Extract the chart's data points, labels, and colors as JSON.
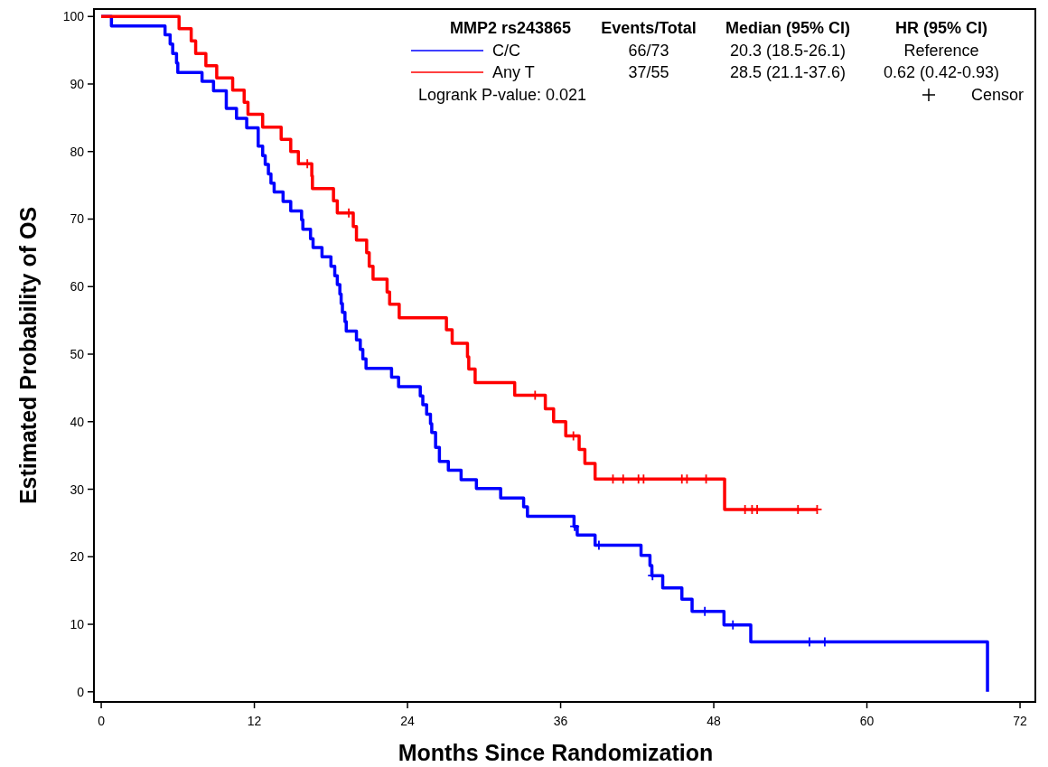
{
  "chart_data": {
    "type": "step",
    "xlabel": "Months Since Randomization",
    "ylabel": "Estimated Probability of OS",
    "legend_title": "MMP2 rs243865",
    "legend": "top",
    "grid": false,
    "xlim": [
      -0.57,
      73.2
    ],
    "ylim": [
      -1.5,
      101.1
    ],
    "xticks": [
      0,
      12,
      24,
      36,
      48,
      60,
      72
    ],
    "yticks": [
      0,
      10,
      20,
      30,
      40,
      50,
      60,
      70,
      80,
      90,
      100
    ],
    "annotations": [
      "Events/Total",
      "Median (95% CI)",
      "HR (95% CI)",
      "66/73",
      "20.3 (18.5-26.1)",
      "Reference",
      "37/55",
      "28.5 (21.1-37.6)",
      "0.62 (0.42-0.93)",
      "Logrank P-value: 0.021",
      "Censor"
    ],
    "series": [
      {
        "type": "step",
        "name": "C/C",
        "color": "#0000ff",
        "x": [
          0,
          0.8,
          5.0,
          5.4,
          5.6,
          5.9,
          6.0,
          7.9,
          8.8,
          9.8,
          10.6,
          11.4,
          12.3,
          12.65,
          12.85,
          13.1,
          13.3,
          13.55,
          14.25,
          14.85,
          15.7,
          15.8,
          16.4,
          16.6,
          17.3,
          18.0,
          18.3,
          18.5,
          18.7,
          18.8,
          18.9,
          19.1,
          19.2,
          20.0,
          20.3,
          20.5,
          20.75,
          22.75,
          23.3,
          25.0,
          25.2,
          25.5,
          25.8,
          25.9,
          26.2,
          26.5,
          27.2,
          28.2,
          29.4,
          31.3,
          33.1,
          33.4,
          37.05,
          37.3,
          38.7,
          42.3,
          43.0,
          43.15,
          44.0,
          45.5,
          46.3,
          48.8,
          50.9,
          69.45
        ],
        "values": [
          100,
          98.6,
          97.3,
          95.9,
          94.5,
          93.1,
          91.7,
          90.4,
          89.0,
          86.4,
          84.9,
          83.5,
          80.8,
          79.4,
          78.1,
          76.7,
          75.3,
          74.0,
          72.6,
          71.2,
          69.9,
          68.5,
          67.1,
          65.8,
          64.4,
          63.0,
          61.6,
          60.3,
          58.9,
          57.5,
          56.2,
          54.8,
          53.4,
          52.1,
          50.7,
          49.3,
          47.9,
          46.6,
          45.2,
          43.8,
          42.5,
          41.1,
          39.7,
          38.4,
          36.2,
          34.1,
          32.8,
          31.4,
          30.1,
          28.7,
          27.4,
          26.0,
          24.5,
          23.2,
          21.7,
          20.2,
          18.7,
          17.2,
          15.4,
          13.7,
          11.9,
          9.9,
          7.4,
          0
        ]
      },
      {
        "type": "step",
        "name": "Any T",
        "color": "#ff0000",
        "x": [
          0,
          6.1,
          7.05,
          7.4,
          8.2,
          9.05,
          10.3,
          11.2,
          11.5,
          12.65,
          14.1,
          14.85,
          15.45,
          16.5,
          16.55,
          18.2,
          18.5,
          19.75,
          20.0,
          20.8,
          21.0,
          21.3,
          22.4,
          22.6,
          23.35,
          27.05,
          27.5,
          28.7,
          28.8,
          29.3,
          32.4,
          34.8,
          35.45,
          36.4,
          37.45,
          37.9,
          38.7,
          48.85,
          56.1
        ],
        "values": [
          100,
          98.2,
          96.4,
          94.5,
          92.7,
          90.9,
          89.1,
          87.3,
          85.5,
          83.6,
          81.8,
          80.0,
          78.2,
          76.4,
          74.5,
          72.7,
          70.9,
          68.9,
          66.9,
          65.0,
          63.0,
          61.1,
          59.2,
          57.4,
          55.4,
          53.6,
          51.6,
          49.6,
          47.8,
          45.8,
          43.9,
          41.9,
          40.0,
          37.9,
          35.9,
          33.8,
          31.5,
          27.0,
          27.0
        ]
      },
      {
        "type": "scatter",
        "color": "#0000ff",
        "marker": "cross",
        "x": [
          37.1,
          39.0,
          43.2,
          47.3,
          49.5,
          55.5,
          56.7
        ],
        "values": [
          24.5,
          21.7,
          17.2,
          11.9,
          9.9,
          7.4,
          7.4
        ]
      },
      {
        "type": "scatter",
        "color": "#ff0000",
        "marker": "cross",
        "x": [
          16.15,
          19.4,
          34.0,
          37.0,
          40.1,
          40.9,
          42.1,
          42.5,
          45.5,
          45.9,
          47.4,
          50.45,
          51.0,
          51.4,
          54.6,
          56.1
        ],
        "values": [
          78.2,
          70.9,
          43.9,
          37.9,
          31.5,
          31.5,
          31.5,
          31.5,
          31.5,
          31.5,
          31.5,
          27.0,
          27.0,
          27.0,
          27.0,
          27.0
        ]
      }
    ]
  }
}
